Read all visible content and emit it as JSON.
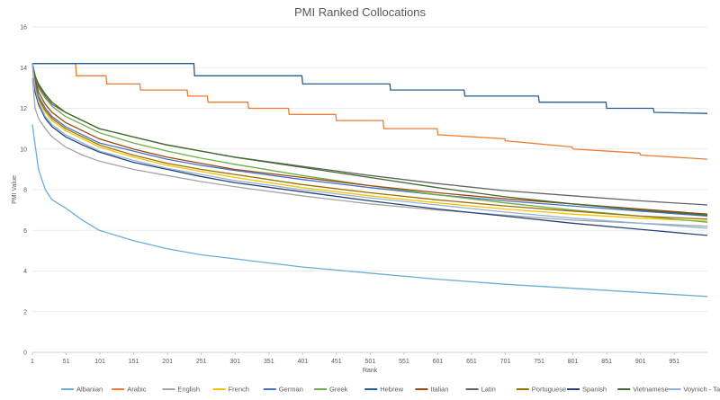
{
  "chart_data": {
    "type": "line",
    "title": "PMI Ranked Collocations",
    "xlabel": "Rank",
    "ylabel": "PMI Value",
    "xlim": [
      1,
      1000
    ],
    "ylim": [
      0,
      16
    ],
    "yticks": [
      0,
      2,
      4,
      6,
      8,
      10,
      12,
      14,
      16
    ],
    "xticks": [
      1,
      51,
      101,
      151,
      201,
      251,
      301,
      351,
      401,
      451,
      501,
      551,
      601,
      651,
      701,
      751,
      801,
      851,
      901,
      951
    ],
    "grid": true,
    "legend": "bottom",
    "series": [
      {
        "name": "Albanian",
        "color": "#6baed6",
        "x": [
          1,
          5,
          10,
          20,
          30,
          50,
          75,
          100,
          150,
          200,
          250,
          300,
          400,
          500,
          600,
          700,
          800,
          900,
          1000
        ],
        "y": [
          11.2,
          10.2,
          9.0,
          8.0,
          7.5,
          7.1,
          6.5,
          6.0,
          5.5,
          5.1,
          4.8,
          4.6,
          4.2,
          3.9,
          3.6,
          3.35,
          3.15,
          2.95,
          2.75
        ]
      },
      {
        "name": "Arabic",
        "color": "#ed7d31",
        "x": [
          1,
          15,
          16,
          65,
          66,
          110,
          111,
          160,
          161,
          230,
          231,
          260,
          261,
          320,
          321,
          380,
          381,
          450,
          451,
          520,
          521,
          600,
          601,
          700,
          701,
          800,
          801,
          900,
          901,
          1000
        ],
        "y": [
          14.2,
          14.2,
          14.2,
          14.2,
          13.6,
          13.6,
          13.2,
          13.2,
          12.9,
          12.9,
          12.6,
          12.6,
          12.3,
          12.3,
          12.0,
          12.0,
          11.7,
          11.7,
          11.4,
          11.4,
          11.0,
          11.0,
          10.7,
          10.5,
          10.4,
          10.1,
          10.0,
          9.8,
          9.7,
          9.5
        ]
      },
      {
        "name": "English",
        "color": "#a5a5a5",
        "x": [
          1,
          5,
          10,
          20,
          30,
          50,
          75,
          100,
          150,
          200,
          250,
          300,
          400,
          500,
          600,
          700,
          800,
          900,
          1000
        ],
        "y": [
          13.5,
          12.0,
          11.5,
          11.0,
          10.6,
          10.1,
          9.7,
          9.4,
          9.0,
          8.7,
          8.4,
          8.15,
          7.7,
          7.3,
          7.0,
          6.75,
          6.5,
          6.35,
          6.2
        ]
      },
      {
        "name": "French",
        "color": "#ffc000",
        "x": [
          1,
          5,
          10,
          20,
          30,
          50,
          75,
          100,
          150,
          200,
          250,
          300,
          400,
          500,
          600,
          700,
          800,
          900,
          1000
        ],
        "y": [
          14.2,
          13.0,
          12.4,
          11.8,
          11.4,
          10.9,
          10.5,
          10.1,
          9.6,
          9.2,
          8.9,
          8.6,
          8.1,
          7.7,
          7.35,
          7.05,
          6.8,
          6.6,
          6.45
        ]
      },
      {
        "name": "German",
        "color": "#4472c4",
        "x": [
          1,
          5,
          10,
          20,
          30,
          50,
          75,
          100,
          150,
          200,
          250,
          300,
          400,
          500,
          600,
          700,
          800,
          900,
          1000
        ],
        "y": [
          14.2,
          13.2,
          12.6,
          12.0,
          11.6,
          11.1,
          10.7,
          10.3,
          9.9,
          9.5,
          9.2,
          8.95,
          8.5,
          8.1,
          7.75,
          7.45,
          7.2,
          6.95,
          6.7
        ]
      },
      {
        "name": "Greek",
        "color": "#70ad47",
        "x": [
          1,
          5,
          10,
          20,
          30,
          50,
          75,
          100,
          150,
          200,
          250,
          300,
          400,
          500,
          600,
          700,
          800,
          900,
          1000
        ],
        "y": [
          14.2,
          13.5,
          13.0,
          12.5,
          12.1,
          11.6,
          11.2,
          10.8,
          10.3,
          9.9,
          9.55,
          9.25,
          8.7,
          8.2,
          7.75,
          7.35,
          7.0,
          6.7,
          6.4
        ]
      },
      {
        "name": "Hebrew",
        "color": "#255e91",
        "x": [
          1,
          240,
          241,
          400,
          401,
          530,
          531,
          640,
          641,
          750,
          751,
          850,
          851,
          920,
          921,
          1000
        ],
        "y": [
          14.2,
          14.2,
          13.6,
          13.6,
          13.2,
          13.2,
          12.9,
          12.9,
          12.6,
          12.6,
          12.3,
          12.3,
          12.0,
          12.0,
          11.8,
          11.75
        ]
      },
      {
        "name": "Italian",
        "color": "#9e480e",
        "x": [
          1,
          5,
          10,
          20,
          30,
          50,
          75,
          100,
          150,
          200,
          250,
          300,
          400,
          500,
          600,
          700,
          800,
          900,
          1000
        ],
        "y": [
          14.2,
          13.4,
          12.8,
          12.2,
          11.8,
          11.3,
          10.9,
          10.5,
          10.0,
          9.6,
          9.3,
          9.0,
          8.6,
          8.2,
          7.85,
          7.55,
          7.3,
          7.05,
          6.8
        ]
      },
      {
        "name": "Latin",
        "color": "#636363",
        "x": [
          1,
          5,
          10,
          20,
          30,
          50,
          75,
          100,
          150,
          200,
          250,
          300,
          400,
          500,
          600,
          700,
          800,
          900,
          1000
        ],
        "y": [
          14.2,
          13.6,
          13.1,
          12.6,
          12.2,
          11.8,
          11.4,
          11.0,
          10.6,
          10.2,
          9.9,
          9.6,
          9.15,
          8.7,
          8.3,
          7.95,
          7.7,
          7.45,
          7.25
        ]
      },
      {
        "name": "Portuguese",
        "color": "#997300",
        "x": [
          1,
          5,
          10,
          20,
          30,
          50,
          75,
          100,
          150,
          200,
          250,
          300,
          400,
          500,
          600,
          700,
          800,
          900,
          1000
        ],
        "y": [
          14.2,
          13.1,
          12.5,
          11.9,
          11.5,
          11.0,
          10.6,
          10.2,
          9.7,
          9.3,
          9.0,
          8.75,
          8.25,
          7.85,
          7.5,
          7.2,
          6.95,
          6.7,
          6.55
        ]
      },
      {
        "name": "Spanish",
        "color": "#264478",
        "x": [
          1,
          5,
          10,
          20,
          30,
          50,
          75,
          100,
          150,
          200,
          250,
          300,
          400,
          500,
          600,
          700,
          800,
          900,
          1000
        ],
        "y": [
          14.2,
          12.8,
          12.2,
          11.5,
          11.1,
          10.6,
          10.2,
          9.85,
          9.35,
          9.0,
          8.65,
          8.35,
          7.9,
          7.45,
          7.05,
          6.7,
          6.35,
          6.05,
          5.75
        ]
      },
      {
        "name": "Vietnamese",
        "color": "#43682b",
        "x": [
          1,
          5,
          10,
          20,
          30,
          50,
          75,
          100,
          150,
          200,
          250,
          300,
          400,
          500,
          600,
          700,
          800,
          900,
          1000
        ],
        "y": [
          14.2,
          13.6,
          13.2,
          12.7,
          12.3,
          11.8,
          11.4,
          11.0,
          10.6,
          10.2,
          9.9,
          9.6,
          9.1,
          8.6,
          8.1,
          7.65,
          7.3,
          7.0,
          6.75
        ]
      },
      {
        "name": "Voynich - Takahashi",
        "color": "#8fb4dc",
        "x": [
          1,
          5,
          10,
          20,
          30,
          50,
          75,
          100,
          150,
          200,
          250,
          300,
          400,
          500,
          600,
          700,
          800,
          900,
          1000
        ],
        "y": [
          14.2,
          13.0,
          12.3,
          11.6,
          11.2,
          10.7,
          10.3,
          9.9,
          9.45,
          9.05,
          8.75,
          8.45,
          8.0,
          7.6,
          7.25,
          6.9,
          6.6,
          6.35,
          6.1
        ]
      }
    ]
  }
}
